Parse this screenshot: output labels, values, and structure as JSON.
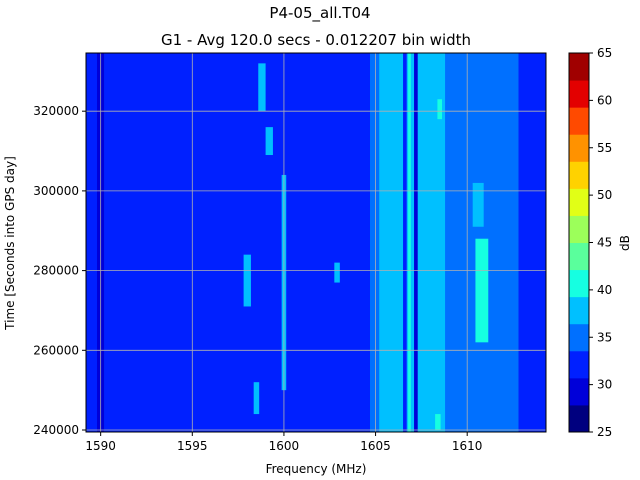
{
  "chart_data": {
    "type": "heatmap",
    "title": "P4-05_all.T04",
    "subtitle": "G1 - Avg 120.0 secs - 0.012207 bin width",
    "xlabel": "Frequency (MHz)",
    "ylabel": "Time [Seconds into GPS day]",
    "colorbar_label": "dB",
    "xlim": [
      1589.2,
      1614.3
    ],
    "ylim": [
      239500,
      334600
    ],
    "x_ticks": [
      1590,
      1595,
      1600,
      1605,
      1610
    ],
    "x_tick_labels": [
      "1590",
      "1595",
      "1600",
      "1605",
      "1610"
    ],
    "y_ticks": [
      240000,
      260000,
      280000,
      300000,
      320000
    ],
    "y_tick_labels": [
      "240000",
      "260000",
      "280000",
      "300000",
      "320000"
    ],
    "colorbar_ticks": [
      25,
      30,
      35,
      40,
      45,
      50,
      55,
      60,
      65
    ],
    "colorbar_tick_labels": [
      "25",
      "30",
      "35",
      "40",
      "45",
      "50",
      "55",
      "60",
      "65"
    ],
    "colormap_levels": [
      "#00007f",
      "#0000d9",
      "#0020ff",
      "#0070ff",
      "#00c0ff",
      "#16ffe1",
      "#5aff9c",
      "#9cff5a",
      "#e1ff16",
      "#ffd200",
      "#ff9200",
      "#ff4a00",
      "#e30000",
      "#a00000"
    ],
    "grid": true,
    "frequency_profile_db": [
      {
        "from": 1589.2,
        "to": 1589.8,
        "db": 31
      },
      {
        "from": 1589.8,
        "to": 1590.2,
        "db": 29
      },
      {
        "from": 1590.2,
        "to": 1604.7,
        "db": 33
      },
      {
        "from": 1604.7,
        "to": 1605.2,
        "db": 36
      },
      {
        "from": 1605.2,
        "to": 1608.8,
        "db": 38
      },
      {
        "from": 1608.8,
        "to": 1611.7,
        "db": 36
      },
      {
        "from": 1611.7,
        "to": 1612.8,
        "db": 34
      },
      {
        "from": 1612.8,
        "to": 1614.3,
        "db": 31
      }
    ],
    "narrowband_lines_db": [
      {
        "freq": 1605.4,
        "width": 0.25,
        "db": 39
      },
      {
        "freq": 1606.0,
        "width": 0.2,
        "db": 39
      },
      {
        "freq": 1606.6,
        "width": 0.2,
        "db": 31
      },
      {
        "freq": 1606.85,
        "width": 0.15,
        "db": 41
      },
      {
        "freq": 1607.2,
        "width": 0.2,
        "db": 30
      },
      {
        "freq": 1607.5,
        "width": 0.2,
        "db": 39
      },
      {
        "freq": 1607.9,
        "width": 0.15,
        "db": 39
      }
    ],
    "interference_patches_db": [
      {
        "freq": 1600.0,
        "width": 0.25,
        "t_from": 250000,
        "t_to": 304000,
        "db": 38
      },
      {
        "freq": 1610.8,
        "width": 0.7,
        "t_from": 262000,
        "t_to": 288000,
        "db": 40
      },
      {
        "freq": 1610.6,
        "width": 0.6,
        "t_from": 291000,
        "t_to": 302000,
        "db": 39
      },
      {
        "freq": 1598.0,
        "width": 0.4,
        "t_from": 271000,
        "t_to": 284000,
        "db": 38
      },
      {
        "freq": 1599.2,
        "width": 0.4,
        "t_from": 309000,
        "t_to": 316000,
        "db": 38
      },
      {
        "freq": 1598.8,
        "width": 0.4,
        "t_from": 320000,
        "t_to": 332000,
        "db": 38
      },
      {
        "freq": 1602.9,
        "width": 0.3,
        "t_from": 277000,
        "t_to": 282000,
        "db": 38
      },
      {
        "freq": 1608.4,
        "width": 0.3,
        "t_from": 240000,
        "t_to": 244000,
        "db": 40
      },
      {
        "freq": 1598.5,
        "width": 0.3,
        "t_from": 244000,
        "t_to": 252000,
        "db": 38
      },
      {
        "freq": 1608.5,
        "width": 0.25,
        "t_from": 318000,
        "t_to": 323000,
        "db": 40
      }
    ]
  }
}
